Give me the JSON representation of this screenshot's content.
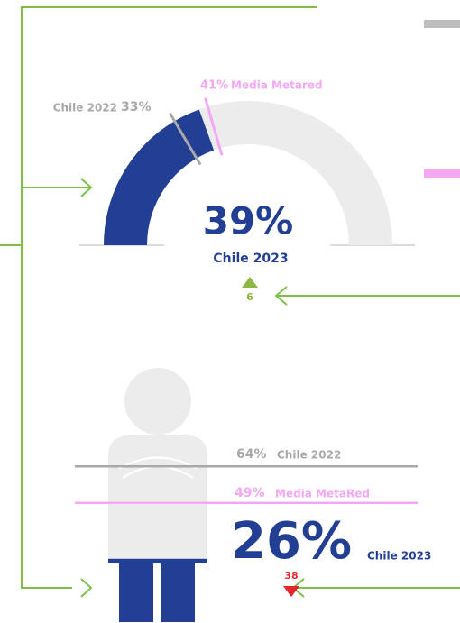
{
  "chart_data": [
    {
      "type": "gauge",
      "value": 39,
      "value_label": "39%",
      "label": "Chile 2023",
      "previous": {
        "value": 33,
        "value_label": "33%",
        "name": "Chile 2022"
      },
      "benchmark": {
        "value": 41,
        "value_label": "41%",
        "name": "Media Metared"
      },
      "change": 6,
      "change_direction": "up",
      "color": "#233f94",
      "track_color": "#ececec",
      "previous_color": "#a9a9a9",
      "benchmark_color": "#f4a8f4",
      "change_color": "#8cb843",
      "ylim": [
        0,
        100
      ]
    },
    {
      "type": "pictogram",
      "value": 26,
      "value_label": "26%",
      "label": "Chile 2023",
      "previous": {
        "value": 64,
        "value_label": "64%",
        "name": "Chile 2022"
      },
      "benchmark": {
        "value": 49,
        "value_label": "49%",
        "name": "Media MetaRed"
      },
      "change": 38,
      "change_direction": "down",
      "color": "#233f94",
      "track_color": "#ececec",
      "previous_color": "#a9a9a9",
      "benchmark_color": "#f4a8f4",
      "change_color": "#e3262c",
      "ylim": [
        0,
        100
      ]
    }
  ]
}
